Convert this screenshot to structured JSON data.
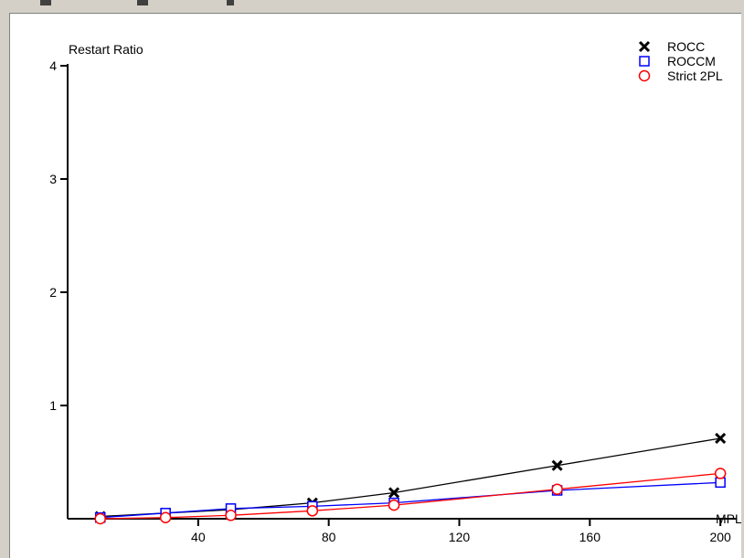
{
  "chart_data": {
    "type": "line",
    "title": "",
    "xlabel": "MPL",
    "ylabel": "Restart Ratio",
    "xlim": [
      0,
      205
    ],
    "ylim": [
      0,
      4
    ],
    "x_ticks": [
      40,
      80,
      120,
      160,
      200
    ],
    "y_ticks": [
      1,
      2,
      3,
      4
    ],
    "legend_position": "top-right",
    "grid": false,
    "series": [
      {
        "name": "ROCC",
        "marker": "x",
        "color": "#000000",
        "x": [
          10,
          30,
          50,
          75,
          100,
          150,
          200
        ],
        "y": [
          0.02,
          0.05,
          0.08,
          0.14,
          0.23,
          0.47,
          0.71
        ]
      },
      {
        "name": "ROCCM",
        "marker": "square",
        "color": "#0000ff",
        "x": [
          10,
          30,
          50,
          75,
          100,
          150,
          200
        ],
        "y": [
          0.01,
          0.05,
          0.09,
          0.11,
          0.14,
          0.25,
          0.32
        ]
      },
      {
        "name": "Strict 2PL",
        "marker": "circle",
        "color": "#ff0000",
        "x": [
          10,
          30,
          50,
          75,
          100,
          150,
          200
        ],
        "y": [
          0.0,
          0.01,
          0.03,
          0.07,
          0.12,
          0.26,
          0.4
        ]
      }
    ]
  }
}
